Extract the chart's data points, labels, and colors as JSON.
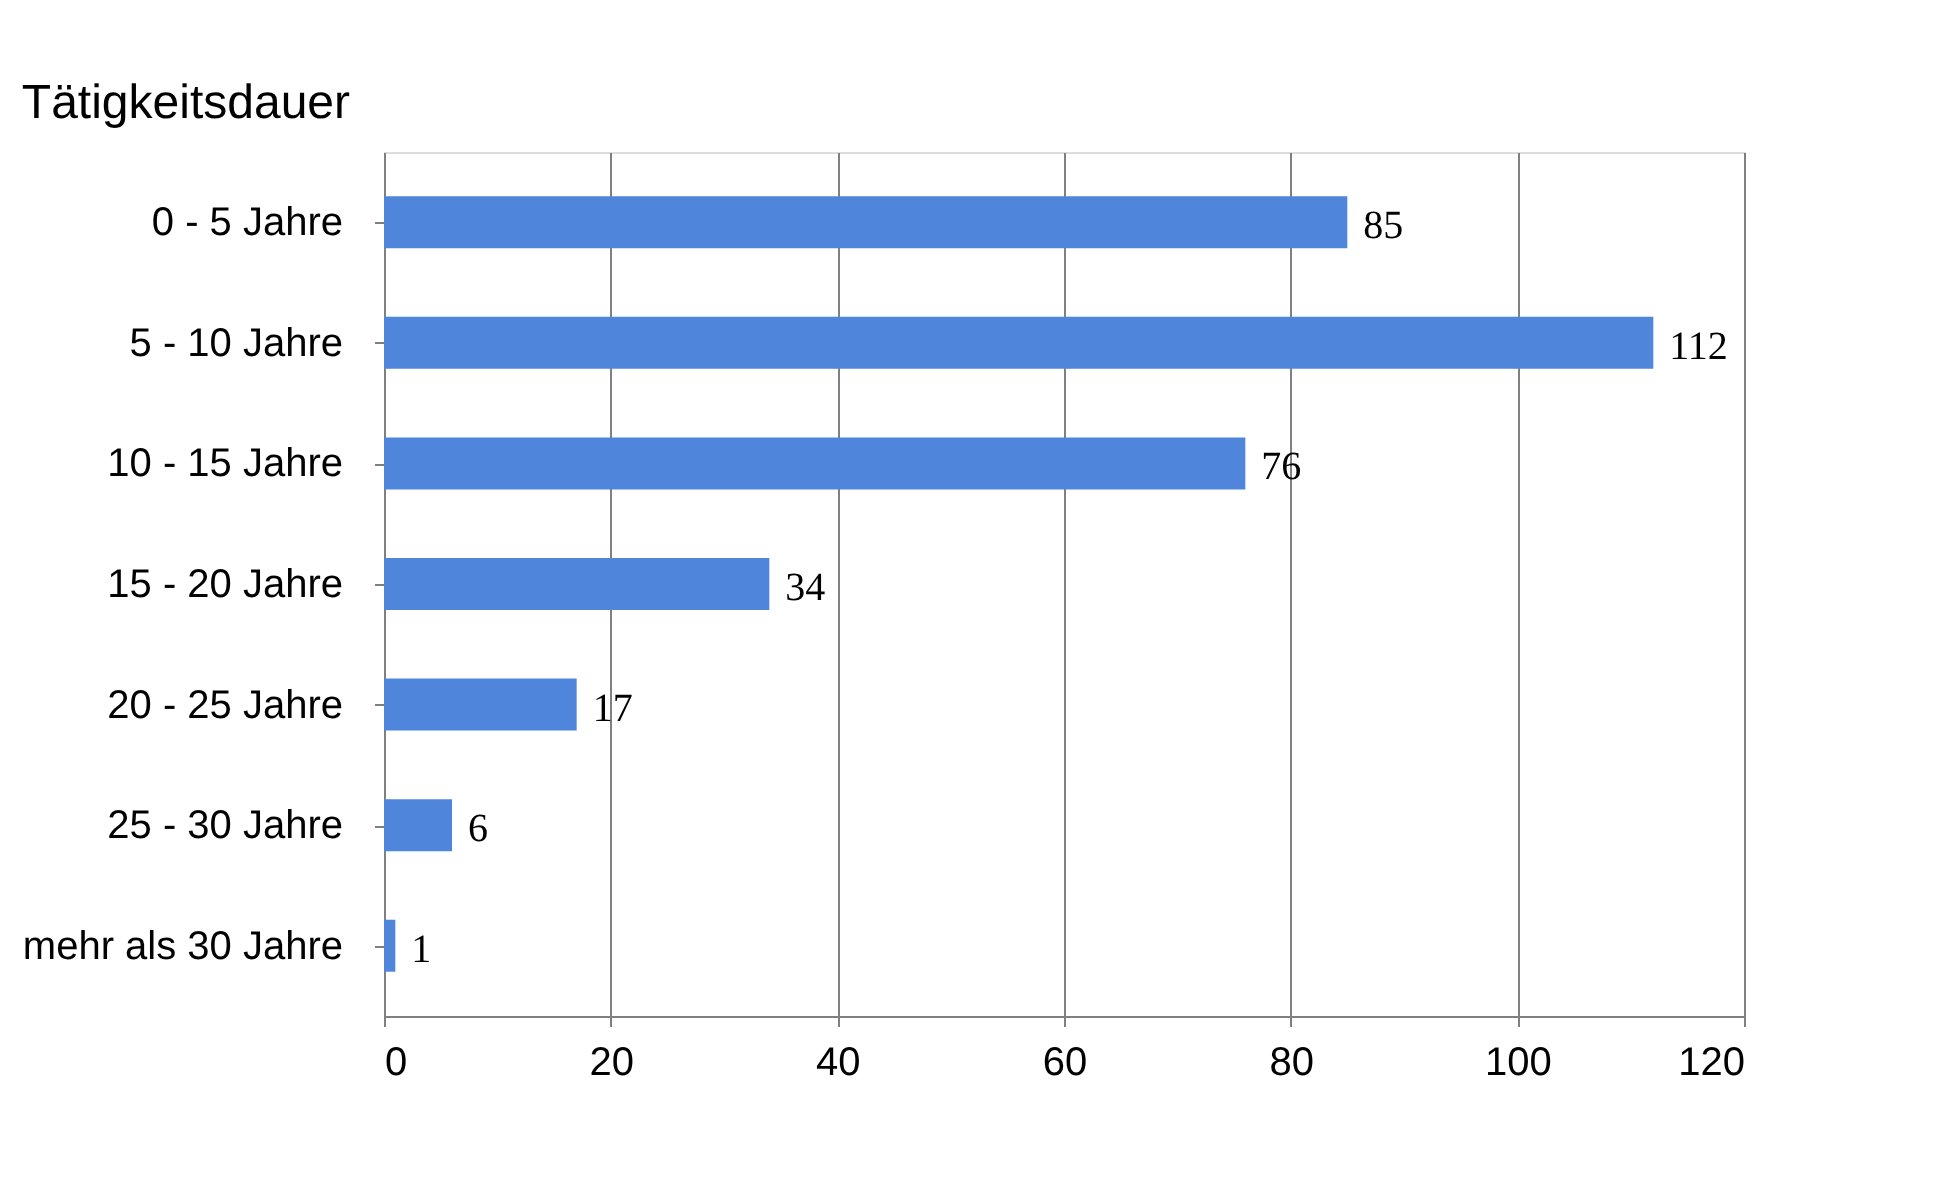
{
  "chart_data": {
    "type": "bar",
    "orientation": "horizontal",
    "title": "Tätigkeitsdauer",
    "categories": [
      "0 - 5 Jahre",
      "5 - 10 Jahre",
      "10 - 15 Jahre",
      "15 - 20 Jahre",
      "20 - 25 Jahre",
      "25 - 30 Jahre",
      "mehr als 30 Jahre"
    ],
    "values": [
      85,
      112,
      76,
      34,
      17,
      6,
      1
    ],
    "color": "#4f86dc",
    "xlim": [
      0,
      120
    ],
    "xticks": [
      0,
      20,
      40,
      60,
      80,
      100,
      120
    ],
    "grid": "x",
    "data_labels": true
  }
}
